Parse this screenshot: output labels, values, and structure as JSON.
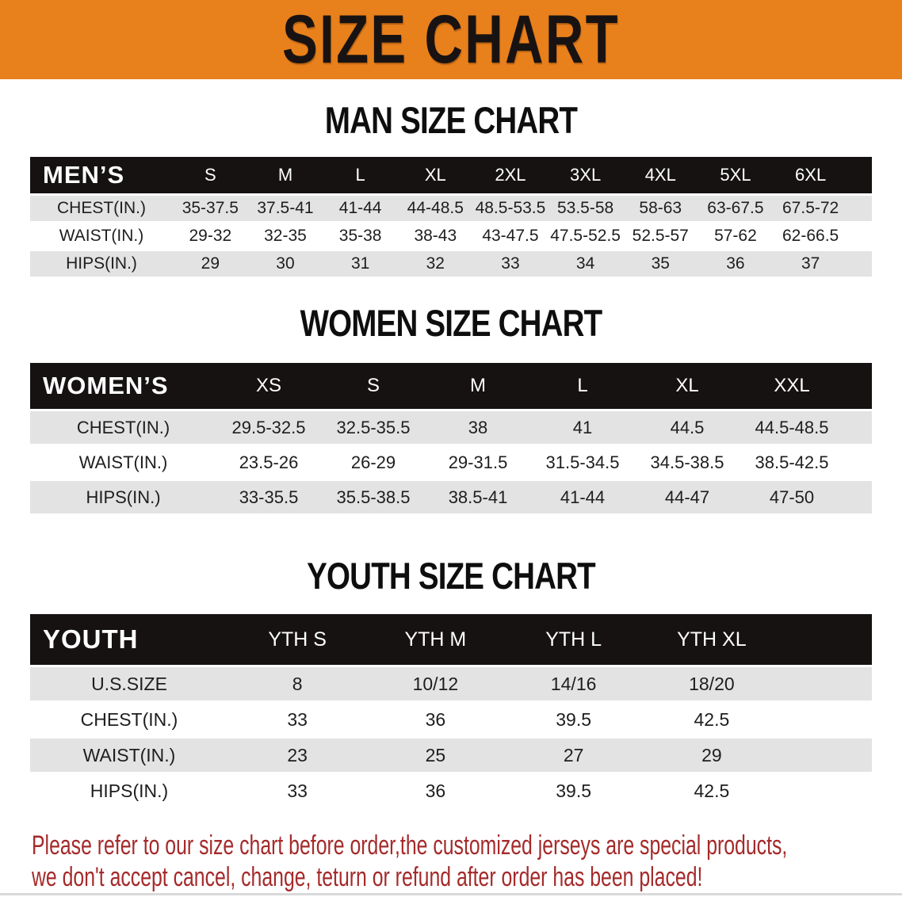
{
  "banner": {
    "title": "SIZE CHART",
    "bg_color": "#E8801C",
    "text_color": "#181312"
  },
  "sections": [
    {
      "heading": "MAN SIZE CHART",
      "group_label": "MEN’S",
      "columns": [
        "S",
        "M",
        "L",
        "XL",
        "2XL",
        "3XL",
        "4XL",
        "5XL",
        "6XL"
      ],
      "rows": [
        {
          "label": "CHEST(IN.)",
          "values": [
            "35-37.5",
            "37.5-41",
            "41-44",
            "44-48.5",
            "48.5-53.5",
            "53.5-58",
            "58-63",
            "63-67.5",
            "67.5-72"
          ]
        },
        {
          "label": "WAIST(IN.)",
          "values": [
            "29-32",
            "32-35",
            "35-38",
            "38-43",
            "43-47.5",
            "47.5-52.5",
            "52.5-57",
            "57-62",
            "62-66.5"
          ]
        },
        {
          "label": "HIPS(IN.)",
          "values": [
            "29",
            "30",
            "31",
            "32",
            "33",
            "34",
            "35",
            "36",
            "37"
          ]
        }
      ]
    },
    {
      "heading": "WOMEN SIZE CHART",
      "group_label": "WOMEN’S",
      "columns": [
        "XS",
        "S",
        "M",
        "L",
        "XL",
        "XXL"
      ],
      "rows": [
        {
          "label": "CHEST(IN.)",
          "values": [
            "29.5-32.5",
            "32.5-35.5",
            "38",
            "41",
            "44.5",
            "44.5-48.5"
          ]
        },
        {
          "label": "WAIST(IN.)",
          "values": [
            "23.5-26",
            "26-29",
            "29-31.5",
            "31.5-34.5",
            "34.5-38.5",
            "38.5-42.5"
          ]
        },
        {
          "label": "HIPS(IN.)",
          "values": [
            "33-35.5",
            "35.5-38.5",
            "38.5-41",
            "41-44",
            "44-47",
            "47-50"
          ]
        }
      ]
    },
    {
      "heading": "YOUTH SIZE CHART",
      "group_label": "YOUTH",
      "columns": [
        "YTH S",
        "YTH M",
        "YTH L",
        "YTH XL"
      ],
      "rows": [
        {
          "label": "U.S.SIZE",
          "values": [
            "8",
            "10/12",
            "14/16",
            "18/20"
          ]
        },
        {
          "label": "CHEST(IN.)",
          "values": [
            "33",
            "36",
            "39.5",
            "42.5"
          ]
        },
        {
          "label": "WAIST(IN.)",
          "values": [
            "23",
            "25",
            "27",
            "29"
          ]
        },
        {
          "label": "HIPS(IN.)",
          "values": [
            "33",
            "36",
            "39.5",
            "42.5"
          ]
        }
      ]
    }
  ],
  "footer": {
    "line1": "Please refer to our size chart before order,the customized jerseys are special products,",
    "line2": "we don't accept cancel, change, teturn or refund after order has been placed!",
    "text_color": "#A52A2A"
  }
}
